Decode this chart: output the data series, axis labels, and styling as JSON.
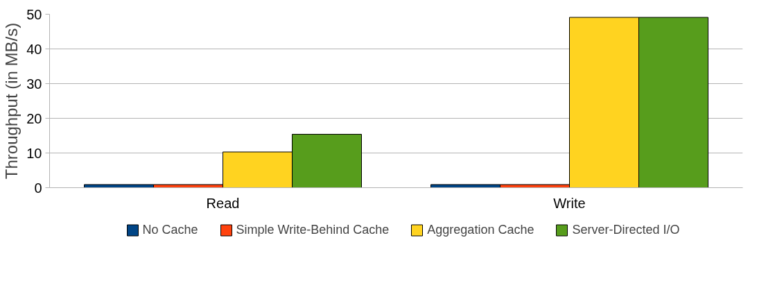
{
  "chart_data": {
    "type": "bar",
    "ylabel": "Throughput (in MB/s)",
    "categories": [
      "Read",
      "Write"
    ],
    "series": [
      {
        "name": "No Cache",
        "color": "#004586",
        "values": [
          0.9,
          0.9
        ]
      },
      {
        "name": "Simple Write-Behind Cache",
        "color": "#ff420e",
        "values": [
          0.9,
          0.9
        ]
      },
      {
        "name": "Aggregation Cache",
        "color": "#ffd320",
        "values": [
          10.3,
          49.1
        ]
      },
      {
        "name": "Server-Directed I/O",
        "color": "#579d1c",
        "values": [
          15.4,
          49.1
        ]
      }
    ],
    "ylim": [
      0,
      50
    ],
    "yticks": [
      0,
      10,
      20,
      30,
      40,
      50
    ],
    "grid": "y",
    "legend": "bottom"
  }
}
